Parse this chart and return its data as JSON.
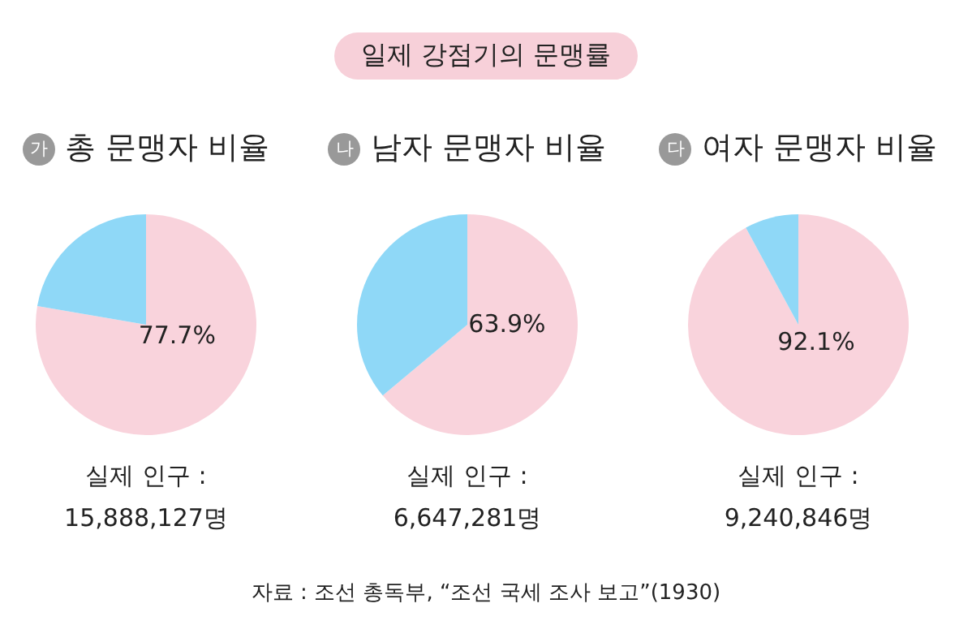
{
  "chart_data": [
    {
      "type": "other",
      "title": "일제 강점기의 문맹률"
    },
    {
      "type": "pie",
      "title": "가 총 문맹자 비율",
      "categories": [
        null,
        null
      ],
      "values": [
        77.7,
        22.3
      ],
      "colors": [
        "#f9d3dc",
        "#8fd8f7"
      ],
      "value_labels": [
        "77.7%",
        null
      ],
      "annotations": [
        "실제 인구 :",
        "15,888,127명"
      ]
    },
    {
      "type": "pie",
      "title": "나 남자 문맹자 비율",
      "categories": [
        null,
        null
      ],
      "values": [
        63.9,
        36.1
      ],
      "colors": [
        "#f9d3dc",
        "#8fd8f7"
      ],
      "value_labels": [
        "63.9%",
        null
      ],
      "annotations": [
        "실제 인구 :",
        "6,647,281명"
      ]
    },
    {
      "type": "pie",
      "title": "다 여자 문맹자 비율",
      "categories": [
        null,
        null
      ],
      "values": [
        92.1,
        7.9
      ],
      "colors": [
        "#f9d3dc",
        "#8fd8f7"
      ],
      "value_labels": [
        "92.1%",
        null
      ],
      "annotations": [
        "실제 인구 :",
        "9,240,846명"
      ]
    },
    {
      "type": "other",
      "annotations": [
        "자료 : 조선 총독부, “조선 국세 조사 보고”(1930)"
      ]
    }
  ]
}
